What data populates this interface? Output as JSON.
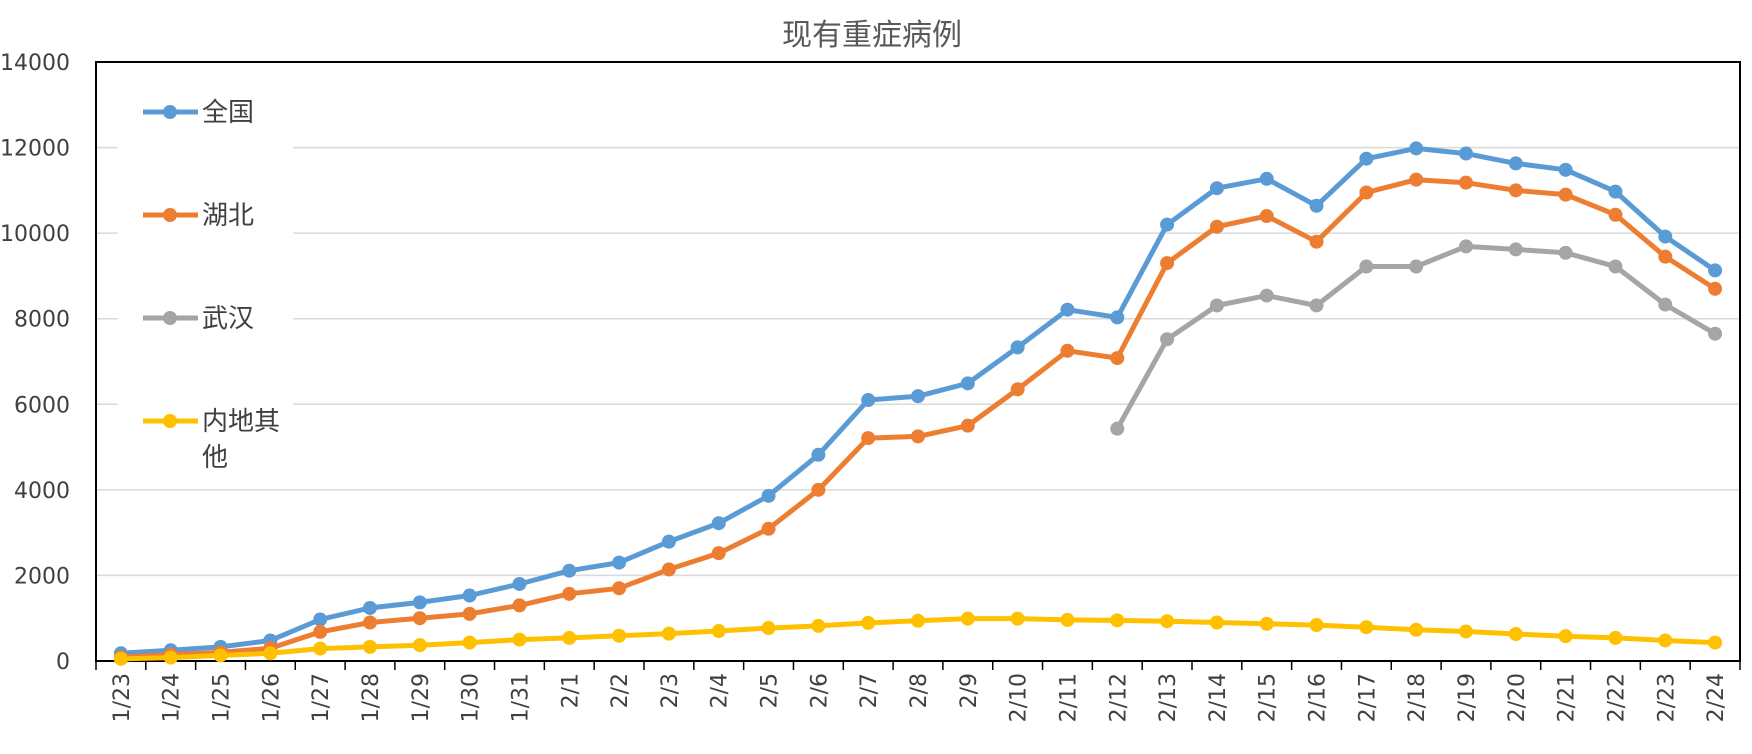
{
  "chart_data": {
    "type": "line",
    "title": "现有重症病例",
    "xlabel": "",
    "ylabel": "",
    "ylim": [
      0,
      14000
    ],
    "yticks": [
      0,
      2000,
      4000,
      6000,
      8000,
      10000,
      12000,
      14000
    ],
    "grid": true,
    "legend_position": "top-left",
    "categories": [
      "1/23",
      "1/24",
      "1/25",
      "1/26",
      "1/27",
      "1/28",
      "1/29",
      "1/30",
      "1/31",
      "2/1",
      "2/2",
      "2/3",
      "2/4",
      "2/5",
      "2/6",
      "2/7",
      "2/8",
      "2/9",
      "2/10",
      "2/11",
      "2/12",
      "2/13",
      "2/14",
      "2/15",
      "2/16",
      "2/17",
      "2/18",
      "2/19",
      "2/20",
      "2/21",
      "2/22",
      "2/23",
      "2/24"
    ],
    "series": [
      {
        "name": "全国",
        "color": "#5B9BD5",
        "values": [
          180,
          250,
          330,
          480,
          970,
          1240,
          1370,
          1530,
          1800,
          2110,
          2300,
          2790,
          3220,
          3860,
          4820,
          6100,
          6190,
          6490,
          7330,
          8210,
          8030,
          10200,
          11050,
          11270,
          10640,
          11740,
          11980,
          11860,
          11630,
          11480,
          10970,
          9920,
          9130
        ]
      },
      {
        "name": "湖北",
        "color": "#ED7D31",
        "values": [
          90,
          150,
          200,
          300,
          680,
          900,
          1000,
          1100,
          1300,
          1570,
          1700,
          2140,
          2520,
          3090,
          4000,
          5210,
          5250,
          5500,
          6350,
          7250,
          7080,
          9300,
          10150,
          10400,
          9800,
          10950,
          11250,
          11180,
          11000,
          10900,
          10430,
          9450,
          8700
        ]
      },
      {
        "name": "武汉",
        "color": "#A5A5A5",
        "values": [
          null,
          null,
          null,
          null,
          null,
          null,
          null,
          null,
          null,
          null,
          null,
          null,
          null,
          null,
          null,
          null,
          null,
          null,
          null,
          null,
          5430,
          7520,
          8310,
          8540,
          8310,
          9220,
          9220,
          9690,
          9620,
          9540,
          9220,
          8330,
          7650
        ]
      },
      {
        "name": "内地其他",
        "color": "#FFC000",
        "values": [
          50,
          80,
          130,
          180,
          290,
          330,
          370,
          430,
          500,
          540,
          590,
          640,
          700,
          770,
          820,
          890,
          940,
          990,
          990,
          960,
          950,
          930,
          900,
          870,
          840,
          790,
          730,
          690,
          630,
          580,
          540,
          480,
          430
        ]
      }
    ]
  }
}
